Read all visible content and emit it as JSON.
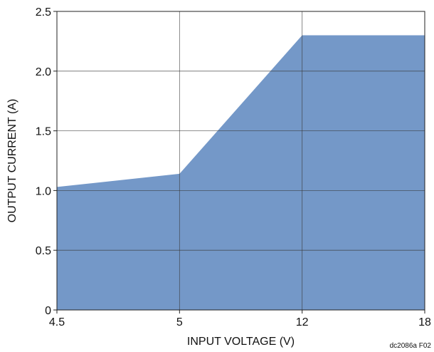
{
  "chart_data": {
    "type": "area",
    "x_categories": [
      "4.5",
      "5",
      "12",
      "18"
    ],
    "series": [
      {
        "points": [
          {
            "x": "4.5",
            "y": 1.03
          },
          {
            "x": "5",
            "y": 1.14
          },
          {
            "x": "12",
            "y": 2.3
          },
          {
            "x": "18",
            "y": 2.3
          }
        ]
      }
    ],
    "xlabel": "INPUT VOLTAGE (V)",
    "ylabel": "OUTPUT CURRENT (A)",
    "ylim": [
      0,
      2.5
    ],
    "y_ticks": [
      0,
      0.5,
      1.0,
      1.5,
      2.0,
      2.5
    ],
    "y_tick_labels": [
      "0",
      "0.5",
      "1.0",
      "1.5",
      "2.0",
      "2.5"
    ],
    "grid": true,
    "fill_color": "#7498c8",
    "figure_id": "dc2086a F02"
  }
}
